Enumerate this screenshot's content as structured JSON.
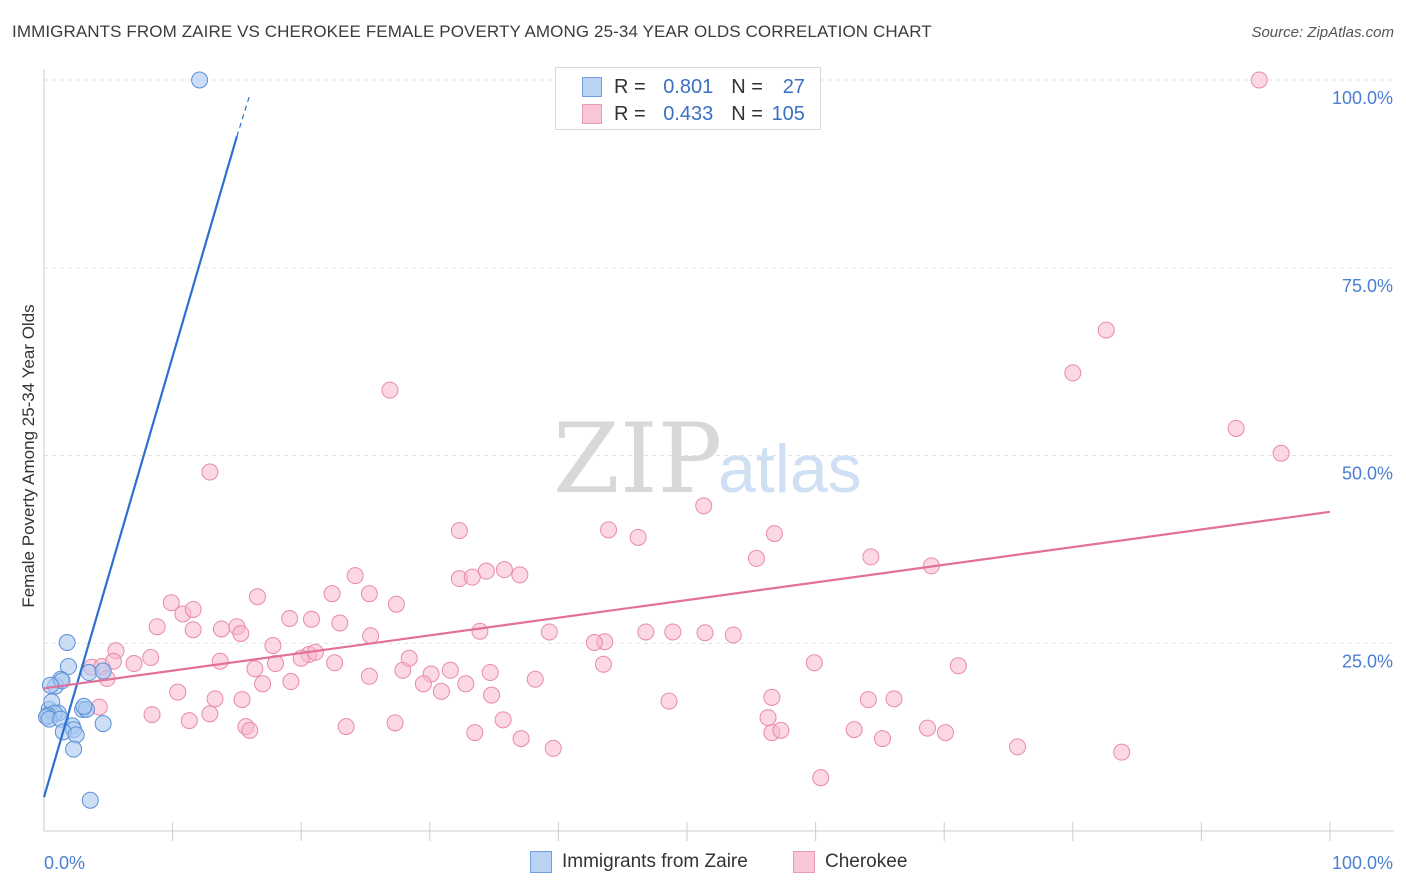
{
  "title": "IMMIGRANTS FROM ZAIRE VS CHEROKEE FEMALE POVERTY AMONG 25-34 YEAR OLDS CORRELATION CHART",
  "source": "Source: ZipAtlas.com",
  "watermark": {
    "zip": "ZIP",
    "atlas": "atlas"
  },
  "colors": {
    "blue_fill": "#a8c8f0",
    "blue_stroke": "#5a8fd8",
    "blue_line": "#2f6fd0",
    "pink_fill": "#f7b8cc",
    "pink_stroke": "#e88aa8",
    "pink_line": "#e2709a",
    "tick": "#4a7fd0",
    "grid": "#dde2ea"
  },
  "legend": {
    "rows": [
      {
        "r_label": "R =",
        "r_value": "0.801",
        "n_label": "N =",
        "n_value": "27"
      },
      {
        "r_label": "R =",
        "r_value": "0.433",
        "n_label": "N =",
        "n_value": "105"
      }
    ]
  },
  "bottom_legend": [
    "Immigrants from Zaire",
    "Cherokee"
  ],
  "chart_data": {
    "type": "scatter",
    "title": "IMMIGRANTS FROM ZAIRE VS CHEROKEE FEMALE POVERTY AMONG 25-34 YEAR OLDS CORRELATION CHART",
    "xlabel": "",
    "ylabel": "Female Poverty Among 25-34 Year Olds",
    "xlim": [
      0,
      100
    ],
    "ylim": [
      0,
      100
    ],
    "x_tick_labels": [
      "0.0%",
      "100.0%"
    ],
    "y_ticks": [
      25,
      50,
      75,
      100
    ],
    "y_tick_labels": [
      "25.0%",
      "50.0%",
      "75.0%",
      "100.0%"
    ],
    "grid": true,
    "series": [
      {
        "name": "Immigrants from Zaire",
        "r": 0.801,
        "n": 27,
        "trend": {
          "x0": 0.0,
          "y0": 4.5,
          "x1": 15.0,
          "y1": 92.5,
          "dash_x1": 16.0,
          "dash_y1": 98.0
        },
        "points": [
          [
            12.1,
            100.0
          ],
          [
            1.8,
            25.1
          ],
          [
            1.9,
            21.9
          ],
          [
            0.9,
            19.3
          ],
          [
            1.3,
            20.2
          ],
          [
            1.4,
            20.0
          ],
          [
            0.5,
            19.4
          ],
          [
            0.4,
            16.2
          ],
          [
            0.6,
            17.2
          ],
          [
            1.1,
            15.7
          ],
          [
            0.8,
            15.7
          ],
          [
            0.3,
            15.4
          ],
          [
            0.2,
            15.2
          ],
          [
            0.4,
            14.9
          ],
          [
            1.3,
            14.9
          ],
          [
            2.2,
            14.0
          ],
          [
            3.0,
            16.2
          ],
          [
            3.3,
            16.2
          ],
          [
            3.1,
            16.6
          ],
          [
            2.3,
            13.5
          ],
          [
            1.5,
            13.2
          ],
          [
            2.5,
            12.8
          ],
          [
            4.6,
            14.3
          ],
          [
            2.3,
            10.9
          ],
          [
            3.5,
            21.1
          ],
          [
            4.6,
            21.3
          ],
          [
            3.6,
            4.1
          ]
        ]
      },
      {
        "name": "Cherokee",
        "r": 0.433,
        "n": 105,
        "trend": {
          "x0": 0.0,
          "y0": 19.0,
          "x1": 100.0,
          "y1": 42.5
        },
        "points": [
          [
            94.5,
            100.0
          ],
          [
            80.0,
            61.0
          ],
          [
            82.6,
            66.7
          ],
          [
            92.7,
            53.6
          ],
          [
            96.2,
            50.3
          ],
          [
            26.9,
            58.7
          ],
          [
            12.9,
            47.8
          ],
          [
            51.3,
            43.3
          ],
          [
            56.8,
            39.6
          ],
          [
            46.2,
            39.1
          ],
          [
            43.9,
            40.1
          ],
          [
            55.4,
            36.3
          ],
          [
            32.3,
            40.0
          ],
          [
            64.3,
            36.5
          ],
          [
            69.0,
            35.3
          ],
          [
            32.3,
            33.6
          ],
          [
            34.4,
            34.6
          ],
          [
            37.0,
            34.1
          ],
          [
            33.3,
            33.8
          ],
          [
            35.8,
            34.8
          ],
          [
            24.2,
            34.0
          ],
          [
            22.4,
            31.6
          ],
          [
            16.6,
            31.2
          ],
          [
            25.3,
            31.6
          ],
          [
            9.9,
            30.4
          ],
          [
            10.8,
            28.9
          ],
          [
            11.6,
            29.5
          ],
          [
            20.8,
            28.2
          ],
          [
            23.0,
            27.7
          ],
          [
            19.1,
            28.3
          ],
          [
            27.4,
            30.2
          ],
          [
            8.8,
            27.2
          ],
          [
            11.6,
            26.8
          ],
          [
            15.0,
            27.2
          ],
          [
            25.4,
            26.0
          ],
          [
            39.3,
            26.5
          ],
          [
            33.9,
            26.6
          ],
          [
            46.8,
            26.5
          ],
          [
            48.9,
            26.5
          ],
          [
            51.4,
            26.4
          ],
          [
            53.6,
            26.1
          ],
          [
            43.6,
            25.2
          ],
          [
            42.8,
            25.1
          ],
          [
            13.8,
            26.9
          ],
          [
            15.3,
            26.3
          ],
          [
            17.8,
            24.7
          ],
          [
            22.6,
            22.4
          ],
          [
            5.6,
            24.0
          ],
          [
            7.0,
            22.3
          ],
          [
            8.3,
            23.1
          ],
          [
            13.7,
            22.6
          ],
          [
            16.4,
            21.6
          ],
          [
            18.0,
            22.3
          ],
          [
            20.6,
            23.5
          ],
          [
            20.0,
            23.0
          ],
          [
            21.1,
            23.8
          ],
          [
            27.9,
            21.4
          ],
          [
            30.1,
            20.9
          ],
          [
            28.4,
            23.0
          ],
          [
            31.6,
            21.4
          ],
          [
            32.8,
            19.6
          ],
          [
            34.7,
            21.1
          ],
          [
            38.2,
            20.2
          ],
          [
            43.5,
            22.2
          ],
          [
            3.7,
            21.8
          ],
          [
            4.5,
            21.9
          ],
          [
            5.4,
            22.6
          ],
          [
            4.9,
            20.3
          ],
          [
            10.4,
            18.5
          ],
          [
            13.3,
            17.6
          ],
          [
            15.4,
            17.5
          ],
          [
            17.0,
            19.6
          ],
          [
            19.2,
            19.9
          ],
          [
            25.3,
            20.6
          ],
          [
            29.5,
            19.6
          ],
          [
            30.9,
            18.6
          ],
          [
            34.8,
            18.1
          ],
          [
            35.7,
            14.8
          ],
          [
            37.1,
            12.3
          ],
          [
            48.6,
            17.3
          ],
          [
            56.6,
            17.8
          ],
          [
            59.9,
            22.4
          ],
          [
            64.1,
            17.5
          ],
          [
            66.1,
            17.6
          ],
          [
            68.7,
            13.7
          ],
          [
            70.1,
            13.1
          ],
          [
            56.6,
            13.1
          ],
          [
            63.0,
            13.5
          ],
          [
            65.2,
            12.3
          ],
          [
            71.1,
            22.0
          ],
          [
            75.7,
            11.2
          ],
          [
            4.3,
            16.5
          ],
          [
            8.4,
            15.5
          ],
          [
            11.3,
            14.7
          ],
          [
            12.9,
            15.6
          ],
          [
            15.7,
            13.9
          ],
          [
            16.0,
            13.4
          ],
          [
            23.5,
            13.9
          ],
          [
            27.3,
            14.4
          ],
          [
            33.5,
            13.1
          ],
          [
            39.6,
            11.0
          ],
          [
            57.3,
            13.4
          ],
          [
            60.4,
            7.1
          ],
          [
            56.3,
            15.1
          ],
          [
            83.8,
            10.5
          ]
        ]
      }
    ]
  }
}
